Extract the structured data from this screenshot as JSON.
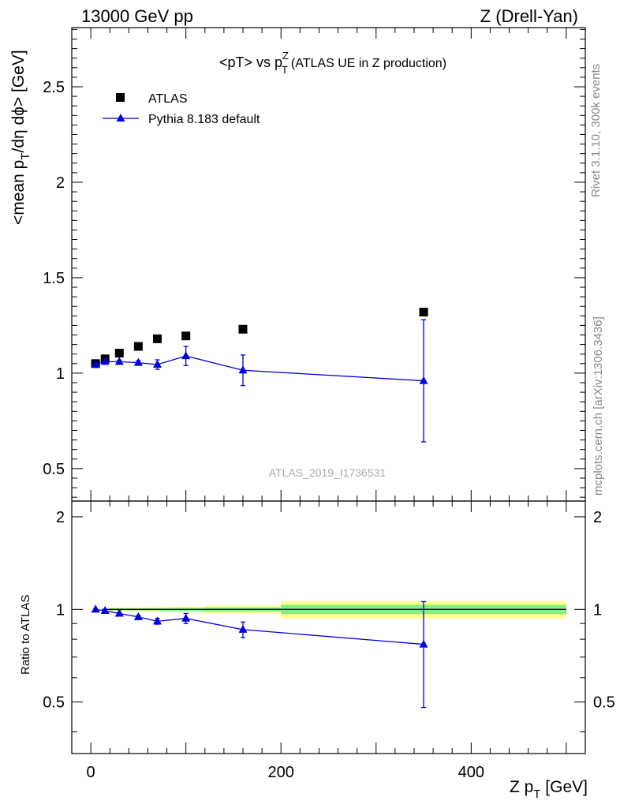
{
  "header": {
    "left": "13000 GeV pp",
    "right": "Z (Drell-Yan)"
  },
  "side_labels": {
    "rivet": "Rivet 3.1.10,  300k events",
    "mcplots": "mcplots.cern.ch [arXiv:1306.3436]"
  },
  "watermark": "ATLAS_2019_I1736531",
  "colors": {
    "data": "#000000",
    "mc": "#0000dd",
    "band_inner": "#7ff27f",
    "band_outer": "#ffff90"
  },
  "chart_data": [
    {
      "type": "scatter",
      "title_main": "<pT> vs p",
      "title_sup": "Z",
      "title_sub": "T",
      "title_rest": "(ATLAS UE in Z production)",
      "ylabel_pre": "<mean p",
      "ylabel_sub": "T",
      "ylabel_post": "/dη dϕ> [GeV]",
      "ylim": [
        0.33,
        2.81
      ],
      "yticks": [
        0.5,
        1,
        1.5,
        2,
        2.5
      ],
      "ytick_labels": [
        "0.5",
        "1",
        "1.5",
        "2",
        "2.5"
      ],
      "legend_position": "top-left",
      "series": [
        {
          "name": "ATLAS",
          "marker": "square",
          "x": [
            5,
            15,
            30,
            50,
            70,
            100,
            160,
            350
          ],
          "y": [
            1.05,
            1.075,
            1.105,
            1.14,
            1.18,
            1.195,
            1.23,
            1.32
          ]
        },
        {
          "name": "Pythia 8.183 default",
          "marker": "triangle",
          "x": [
            5,
            15,
            30,
            50,
            70,
            100,
            160,
            350
          ],
          "y": [
            1.045,
            1.06,
            1.06,
            1.055,
            1.045,
            1.09,
            1.015,
            0.96
          ],
          "err": [
            0.005,
            0.008,
            0.008,
            0.01,
            0.025,
            0.05,
            0.08,
            0.32
          ]
        }
      ]
    },
    {
      "type": "scatter",
      "ylabel": "Ratio to ATLAS",
      "xlabel_pre": "Z p",
      "xlabel_sub": "T",
      "xlabel_post": " [GeV]",
      "xlim": [
        -20,
        520
      ],
      "xticks": [
        0,
        200,
        400
      ],
      "xtick_labels": [
        "0",
        "200",
        "400"
      ],
      "ylim": [
        0.34,
        2.25
      ],
      "yticks": [
        0.5,
        1,
        2
      ],
      "ytick_labels": [
        "0.5",
        "1",
        "2"
      ],
      "bands": [
        {
          "x": [
            20,
            40
          ],
          "inner": [
            0.992,
            1.008
          ],
          "outer": [
            0.985,
            1.015
          ]
        },
        {
          "x": [
            40,
            60
          ],
          "inner": [
            0.992,
            1.008
          ],
          "outer": [
            0.985,
            1.015
          ]
        },
        {
          "x": [
            60,
            80
          ],
          "inner": [
            0.991,
            1.009
          ],
          "outer": [
            0.983,
            1.017
          ]
        },
        {
          "x": [
            80,
            120
          ],
          "inner": [
            0.99,
            1.01
          ],
          "outer": [
            0.98,
            1.02
          ]
        },
        {
          "x": [
            120,
            200
          ],
          "inner": [
            0.985,
            1.015
          ],
          "outer": [
            0.97,
            1.03
          ]
        },
        {
          "x": [
            200,
            500
          ],
          "inner": [
            0.965,
            1.035
          ],
          "outer": [
            0.935,
            1.065
          ]
        }
      ],
      "series": [
        {
          "name": "Pythia 8.183 default",
          "x": [
            5,
            15,
            30,
            50,
            70,
            100,
            160,
            350
          ],
          "y": [
            1.0,
            0.99,
            0.97,
            0.945,
            0.915,
            0.935,
            0.86,
            0.77
          ],
          "err": [
            0.005,
            0.008,
            0.008,
            0.01,
            0.02,
            0.035,
            0.05,
            0.29
          ]
        }
      ]
    }
  ]
}
